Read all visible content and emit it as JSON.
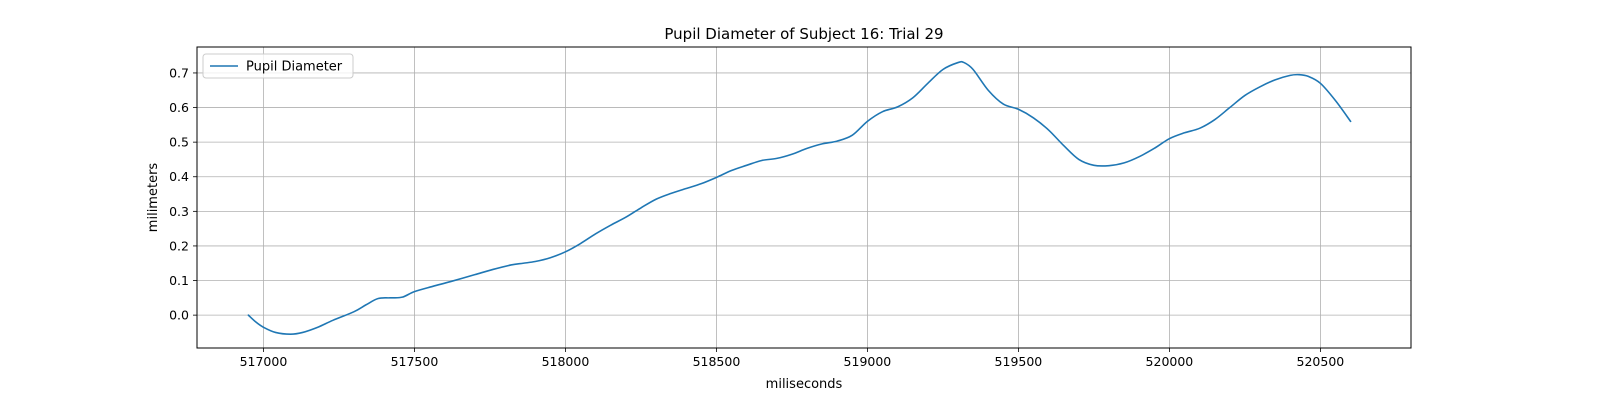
{
  "chart_data": {
    "type": "line",
    "title": "Pupil Diameter of Subject 16: Trial 29",
    "xlabel": "miliseconds",
    "ylabel": "milimeters",
    "xlim": [
      516780,
      520800
    ],
    "ylim": [
      -0.095,
      0.775
    ],
    "xticks": [
      517000,
      517500,
      518000,
      518500,
      519000,
      519500,
      520000,
      520500
    ],
    "yticks": [
      0.0,
      0.1,
      0.2,
      0.3,
      0.4,
      0.5,
      0.6,
      0.7
    ],
    "grid": true,
    "legend": {
      "position": "top-left"
    },
    "series": [
      {
        "name": "Pupil Diameter",
        "color": "#1f77b4",
        "x": [
          516950,
          516975,
          517000,
          517040,
          517090,
          517130,
          517180,
          517230,
          517300,
          517340,
          517380,
          517420,
          517460,
          517500,
          517560,
          517620,
          517700,
          517760,
          517820,
          517860,
          517900,
          517950,
          518000,
          518050,
          518100,
          518150,
          518200,
          518250,
          518300,
          518350,
          518400,
          518450,
          518500,
          518550,
          518600,
          518650,
          518700,
          518750,
          518800,
          518850,
          518900,
          518950,
          519000,
          519050,
          519100,
          519150,
          519200,
          519250,
          519300,
          519320,
          519350,
          519400,
          519450,
          519500,
          519550,
          519600,
          519650,
          519700,
          519750,
          519800,
          519850,
          519900,
          519950,
          520000,
          520050,
          520100,
          520150,
          520200,
          520250,
          520300,
          520350,
          520400,
          520430,
          520460,
          520500,
          520550,
          520600
        ],
        "y": [
          0.0,
          -0.02,
          -0.035,
          -0.05,
          -0.055,
          -0.05,
          -0.035,
          -0.015,
          0.01,
          0.03,
          0.048,
          0.05,
          0.052,
          0.068,
          0.083,
          0.097,
          0.117,
          0.132,
          0.145,
          0.15,
          0.155,
          0.166,
          0.183,
          0.207,
          0.235,
          0.26,
          0.283,
          0.31,
          0.335,
          0.352,
          0.366,
          0.38,
          0.398,
          0.418,
          0.433,
          0.447,
          0.453,
          0.465,
          0.482,
          0.495,
          0.503,
          0.52,
          0.56,
          0.588,
          0.602,
          0.628,
          0.67,
          0.71,
          0.73,
          0.73,
          0.71,
          0.65,
          0.61,
          0.595,
          0.57,
          0.535,
          0.49,
          0.45,
          0.433,
          0.432,
          0.44,
          0.458,
          0.482,
          0.51,
          0.527,
          0.54,
          0.565,
          0.6,
          0.635,
          0.66,
          0.68,
          0.693,
          0.695,
          0.69,
          0.67,
          0.62,
          0.56
        ]
      }
    ]
  }
}
